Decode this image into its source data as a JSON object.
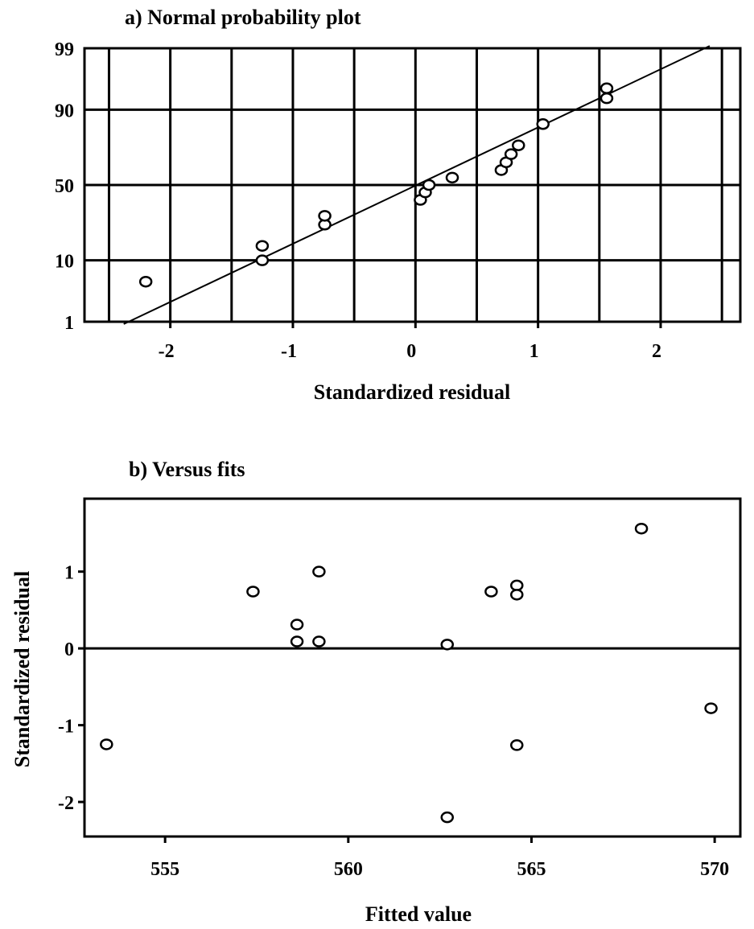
{
  "chart_data": [
    {
      "type": "scatter",
      "title": "a) Normal probability plot",
      "xlabel": "Standardized residual",
      "ylabel": "",
      "xlim": [
        -2.7,
        2.65
      ],
      "x_ticks": [
        -2,
        -1,
        0,
        1,
        2
      ],
      "y_ticks": [
        1,
        10,
        50,
        90,
        99
      ],
      "y_scale": "normal-probability",
      "grid": true,
      "points": [
        {
          "x": -2.2,
          "y": 5
        },
        {
          "x": -1.25,
          "y": 15
        },
        {
          "x": -1.25,
          "y": 10
        },
        {
          "x": -0.74,
          "y": 25
        },
        {
          "x": -0.74,
          "y": 30
        },
        {
          "x": 0.04,
          "y": 40
        },
        {
          "x": 0.08,
          "y": 45
        },
        {
          "x": 0.11,
          "y": 50
        },
        {
          "x": 0.3,
          "y": 55
        },
        {
          "x": 0.7,
          "y": 60
        },
        {
          "x": 0.74,
          "y": 65
        },
        {
          "x": 0.78,
          "y": 70
        },
        {
          "x": 0.84,
          "y": 75
        },
        {
          "x": 1.04,
          "y": 85
        },
        {
          "x": 1.56,
          "y": 93
        },
        {
          "x": 1.56,
          "y": 95
        }
      ],
      "fit_line": {
        "x": [
          -2.38,
          2.4
        ],
        "y": [
          0.9,
          99.1
        ]
      }
    },
    {
      "type": "scatter",
      "title": "b) Versus fits",
      "xlabel": "Fitted value",
      "ylabel": "Standardized residual",
      "xlim": [
        552.8,
        570.7
      ],
      "ylim": [
        -2.45,
        1.95
      ],
      "x_ticks": [
        555,
        560,
        565,
        570
      ],
      "y_ticks": [
        -2,
        -1,
        0,
        1
      ],
      "grid": false,
      "reference_line_y": 0,
      "points": [
        {
          "x": 553.4,
          "y": -1.25
        },
        {
          "x": 557.4,
          "y": 0.74
        },
        {
          "x": 558.6,
          "y": 0.31
        },
        {
          "x": 558.6,
          "y": 0.09
        },
        {
          "x": 559.2,
          "y": 1.0
        },
        {
          "x": 559.2,
          "y": 0.09
        },
        {
          "x": 562.7,
          "y": 0.05
        },
        {
          "x": 562.7,
          "y": -2.2
        },
        {
          "x": 563.9,
          "y": 0.74
        },
        {
          "x": 564.6,
          "y": 0.82
        },
        {
          "x": 564.6,
          "y": 0.7
        },
        {
          "x": 564.6,
          "y": -1.26
        },
        {
          "x": 568.0,
          "y": 1.56
        },
        {
          "x": 569.9,
          "y": -0.78
        }
      ]
    }
  ]
}
